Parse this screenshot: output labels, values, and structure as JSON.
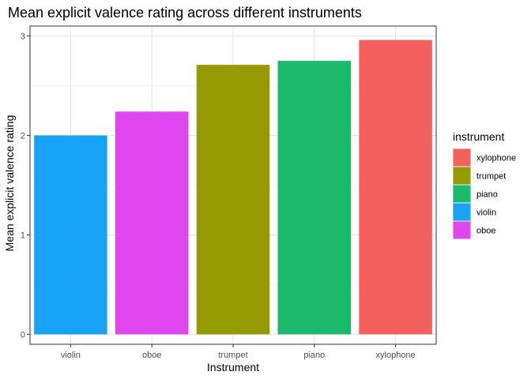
{
  "chart_data": {
    "type": "bar",
    "title": "Mean explicit valence rating across different instruments",
    "xlabel": "Instrument",
    "ylabel": "Mean explicit valence rating",
    "categories": [
      "violin",
      "oboe",
      "trumpet",
      "piano",
      "xylophone"
    ],
    "values": [
      2.0,
      2.24,
      2.71,
      2.75,
      2.96
    ],
    "colors": [
      "#17A2F5",
      "#E046F0",
      "#959A00",
      "#1BB96C",
      "#F4605D"
    ],
    "ylim": [
      -0.1,
      3.1
    ],
    "yticks": [
      0,
      1,
      2,
      3
    ],
    "grid": true,
    "legend": {
      "title": "instrument",
      "position": "right",
      "items": [
        {
          "label": "xylophone",
          "color": "#F4605D"
        },
        {
          "label": "trumpet",
          "color": "#959A00"
        },
        {
          "label": "piano",
          "color": "#1BB96C"
        },
        {
          "label": "violin",
          "color": "#17A2F5"
        },
        {
          "label": "oboe",
          "color": "#E046F0"
        }
      ]
    }
  }
}
